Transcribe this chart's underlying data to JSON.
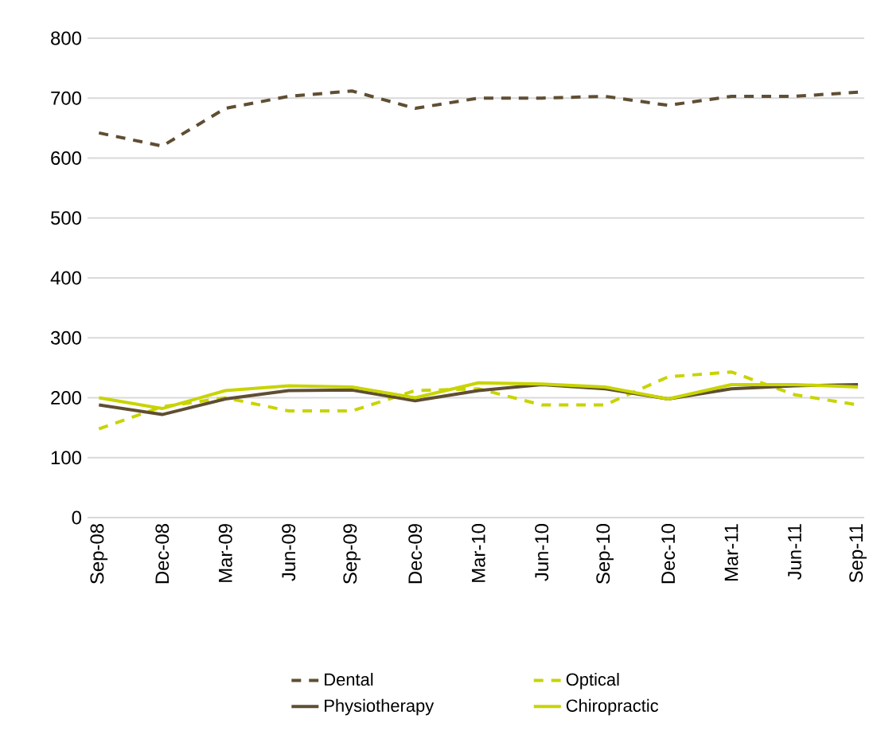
{
  "chart_data": {
    "type": "line",
    "categories": [
      "Sep-08",
      "Dec-08",
      "Mar-09",
      "Jun-09",
      "Sep-09",
      "Dec-09",
      "Mar-10",
      "Jun-10",
      "Sep-10",
      "Dec-10",
      "Mar-11",
      "Jun-11",
      "Sep-11"
    ],
    "series": [
      {
        "name": "Dental",
        "color": "#5f4e33",
        "line_style": "dashed",
        "values": [
          642,
          620,
          683,
          703,
          712,
          683,
          700,
          700,
          703,
          688,
          703,
          703,
          710
        ]
      },
      {
        "name": "Optical",
        "color": "#c8d400",
        "line_style": "dashed",
        "values": [
          148,
          185,
          200,
          178,
          178,
          212,
          215,
          188,
          188,
          235,
          243,
          205,
          188
        ]
      },
      {
        "name": "Physiotherapy",
        "color": "#5f4e33",
        "line_style": "solid",
        "values": [
          188,
          172,
          198,
          212,
          213,
          195,
          212,
          222,
          215,
          198,
          215,
          220,
          222
        ]
      },
      {
        "name": "Chiropractic",
        "color": "#c8d400",
        "line_style": "solid",
        "values": [
          200,
          182,
          212,
          220,
          218,
          200,
          225,
          223,
          218,
          198,
          222,
          222,
          218
        ]
      }
    ],
    "ylim": [
      0,
      800
    ],
    "yticks": [
      0,
      100,
      200,
      300,
      400,
      500,
      600,
      700,
      800
    ],
    "grid": "y",
    "legend": "bottom",
    "marker": "none"
  }
}
